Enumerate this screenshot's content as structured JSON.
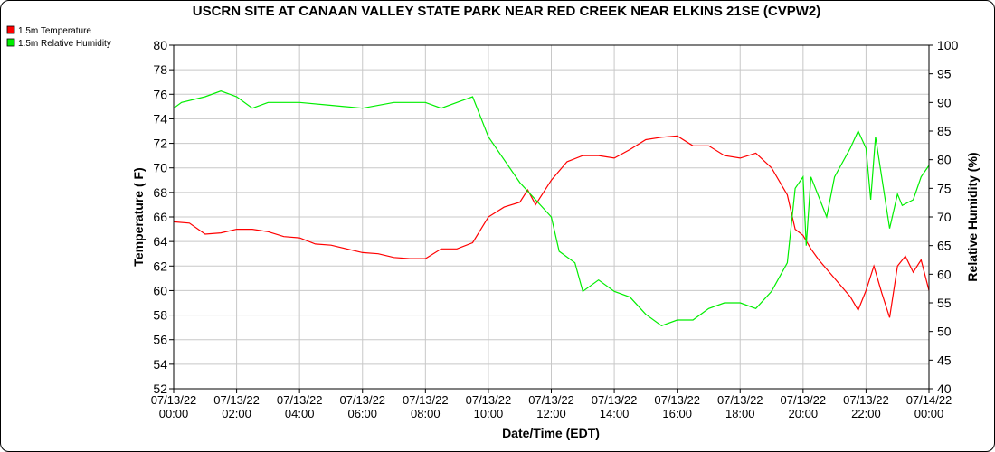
{
  "chart_data": {
    "type": "line",
    "title": "USCRN SITE AT CANAAN VALLEY STATE PARK NEAR RED CREEK NEAR ELKINS 21SE (CVPW2)",
    "xlabel": "Date/Time (EDT)",
    "ylabel": "Temperature ( F)",
    "y2label": "Relative Humidity (%)",
    "xlim_hours": [
      0,
      24
    ],
    "ylim": [
      52,
      80
    ],
    "y2lim": [
      40,
      100
    ],
    "yticks": [
      52,
      54,
      56,
      58,
      60,
      62,
      64,
      66,
      68,
      70,
      72,
      74,
      76,
      78,
      80
    ],
    "y2ticks": [
      40,
      45,
      50,
      55,
      60,
      65,
      70,
      75,
      80,
      85,
      90,
      95,
      100
    ],
    "xticks": [
      {
        "hour": 0,
        "date": "07/13/22",
        "time": "00:00"
      },
      {
        "hour": 2,
        "date": "07/13/22",
        "time": "02:00"
      },
      {
        "hour": 4,
        "date": "07/13/22",
        "time": "04:00"
      },
      {
        "hour": 6,
        "date": "07/13/22",
        "time": "06:00"
      },
      {
        "hour": 8,
        "date": "07/13/22",
        "time": "08:00"
      },
      {
        "hour": 10,
        "date": "07/13/22",
        "time": "10:00"
      },
      {
        "hour": 12,
        "date": "07/13/22",
        "time": "12:00"
      },
      {
        "hour": 14,
        "date": "07/13/22",
        "time": "14:00"
      },
      {
        "hour": 16,
        "date": "07/13/22",
        "time": "16:00"
      },
      {
        "hour": 18,
        "date": "07/13/22",
        "time": "18:00"
      },
      {
        "hour": 20,
        "date": "07/13/22",
        "time": "20:00"
      },
      {
        "hour": 22,
        "date": "07/13/22",
        "time": "22:00"
      },
      {
        "hour": 24,
        "date": "07/14/22",
        "time": "00:00"
      }
    ],
    "grid": true,
    "legend_position": "top-left",
    "series": [
      {
        "name": "1.5m Temperature",
        "axis": "left",
        "color": "#ff0000",
        "x": [
          0,
          0.5,
          1,
          1.5,
          2,
          2.5,
          3,
          3.5,
          4,
          4.5,
          5,
          5.5,
          6,
          6.5,
          7,
          7.5,
          8,
          8.5,
          9,
          9.5,
          10,
          10.5,
          11,
          11.25,
          11.5,
          12,
          12.5,
          13,
          13.5,
          14,
          14.5,
          15,
          15.5,
          16,
          16.5,
          17,
          17.5,
          18,
          18.5,
          19,
          19.5,
          19.75,
          20,
          20.25,
          20.5,
          21,
          21.5,
          21.75,
          22,
          22.25,
          22.5,
          22.75,
          23,
          23.25,
          23.5,
          23.75,
          24
        ],
        "y": [
          65.6,
          65.5,
          64.6,
          64.7,
          65.0,
          65.0,
          64.8,
          64.4,
          64.3,
          63.8,
          63.7,
          63.4,
          63.1,
          63.0,
          62.7,
          62.6,
          62.6,
          63.4,
          63.4,
          63.9,
          66.0,
          66.8,
          67.2,
          68.2,
          67.0,
          69.0,
          70.5,
          71.0,
          71.0,
          70.8,
          71.5,
          72.3,
          72.5,
          72.6,
          71.8,
          71.8,
          71.0,
          70.8,
          71.2,
          70.0,
          67.8,
          65.0,
          64.5,
          63.4,
          62.5,
          61.0,
          59.5,
          58.4,
          60.0,
          62.0,
          59.8,
          57.8,
          62.0,
          62.8,
          61.5,
          62.5,
          60.0
        ]
      },
      {
        "name": "1.5m Relative Humidity",
        "axis": "right",
        "color": "#00ee00",
        "x": [
          0,
          0.25,
          1,
          1.5,
          2,
          2.5,
          3,
          4,
          5,
          6,
          7,
          8,
          8.5,
          9,
          9.5,
          10,
          10.5,
          11,
          11.5,
          12,
          12.25,
          12.75,
          13,
          13.5,
          14,
          14.5,
          15,
          15.5,
          16,
          16.5,
          17,
          17.5,
          18,
          18.5,
          19,
          19.5,
          19.75,
          20,
          20.1,
          20.25,
          20.75,
          21,
          21.5,
          21.75,
          22,
          22.15,
          22.3,
          22.75,
          23,
          23.15,
          23.5,
          23.75,
          24
        ],
        "y": [
          89,
          90,
          91,
          92,
          91,
          89,
          90,
          90,
          89.5,
          89,
          90,
          90,
          89,
          90,
          91,
          84,
          80,
          76,
          73,
          70,
          64,
          62,
          57,
          59,
          57,
          56,
          53,
          51,
          52,
          52,
          54,
          55,
          55,
          54,
          57,
          62,
          75,
          77,
          65,
          77,
          70,
          77,
          82,
          85,
          82,
          73,
          84,
          68,
          74,
          72,
          73,
          77,
          79
        ]
      }
    ]
  }
}
